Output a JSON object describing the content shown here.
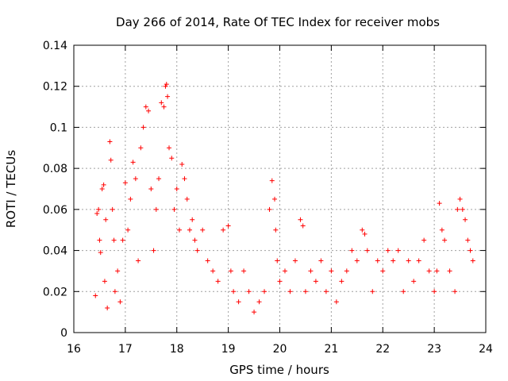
{
  "chart_data": {
    "type": "scatter",
    "title": "Day 266 of 2014, Rate Of TEC Index for receiver mobs",
    "xlabel": "GPS time / hours",
    "ylabel": "ROTI / TECUs",
    "xlim": [
      16,
      24
    ],
    "ylim": [
      0,
      0.14
    ],
    "x_ticks": [
      "16",
      "17",
      "18",
      "19",
      "20",
      "21",
      "22",
      "23",
      "24"
    ],
    "y_ticks": [
      "0",
      "0.02",
      "0.04",
      "0.06",
      "0.08",
      "0.1",
      "0.12",
      "0.14"
    ],
    "grid": true,
    "marker": "+",
    "series": [
      {
        "name": "ROTI",
        "color": "#ff0000",
        "x": [
          16.42,
          16.45,
          16.48,
          16.5,
          16.52,
          16.55,
          16.58,
          16.6,
          16.62,
          16.65,
          16.7,
          16.72,
          16.75,
          16.78,
          16.8,
          16.85,
          16.9,
          16.95,
          17.0,
          17.05,
          17.1,
          17.15,
          17.2,
          17.25,
          17.3,
          17.35,
          17.4,
          17.45,
          17.5,
          17.55,
          17.6,
          17.65,
          17.7,
          17.75,
          17.78,
          17.8,
          17.82,
          17.85,
          17.9,
          17.95,
          18.0,
          18.05,
          18.1,
          18.15,
          18.2,
          18.25,
          18.3,
          18.35,
          18.4,
          18.5,
          18.6,
          18.7,
          18.8,
          18.9,
          19.0,
          19.05,
          19.1,
          19.2,
          19.3,
          19.4,
          19.5,
          19.6,
          19.7,
          19.8,
          19.85,
          19.9,
          19.92,
          19.95,
          20.0,
          20.1,
          20.2,
          20.3,
          20.4,
          20.45,
          20.5,
          20.6,
          20.7,
          20.8,
          20.9,
          21.0,
          21.1,
          21.2,
          21.3,
          21.4,
          21.5,
          21.6,
          21.65,
          21.7,
          21.8,
          21.9,
          22.0,
          22.1,
          22.2,
          22.3,
          22.4,
          22.5,
          22.6,
          22.7,
          22.8,
          22.9,
          23.0,
          23.05,
          23.1,
          23.15,
          23.2,
          23.3,
          23.4,
          23.45,
          23.5,
          23.55,
          23.6,
          23.65,
          23.7,
          23.75
        ],
        "y": [
          0.018,
          0.058,
          0.06,
          0.045,
          0.039,
          0.07,
          0.072,
          0.025,
          0.055,
          0.012,
          0.093,
          0.084,
          0.06,
          0.045,
          0.02,
          0.03,
          0.015,
          0.045,
          0.073,
          0.05,
          0.065,
          0.083,
          0.075,
          0.035,
          0.09,
          0.1,
          0.11,
          0.108,
          0.07,
          0.04,
          0.06,
          0.075,
          0.112,
          0.11,
          0.12,
          0.121,
          0.115,
          0.09,
          0.085,
          0.06,
          0.07,
          0.05,
          0.082,
          0.075,
          0.065,
          0.05,
          0.055,
          0.045,
          0.04,
          0.05,
          0.035,
          0.03,
          0.025,
          0.05,
          0.052,
          0.03,
          0.02,
          0.015,
          0.03,
          0.02,
          0.01,
          0.015,
          0.02,
          0.06,
          0.074,
          0.065,
          0.05,
          0.035,
          0.025,
          0.03,
          0.02,
          0.035,
          0.055,
          0.052,
          0.02,
          0.03,
          0.025,
          0.035,
          0.02,
          0.03,
          0.015,
          0.025,
          0.03,
          0.04,
          0.035,
          0.05,
          0.048,
          0.04,
          0.02,
          0.035,
          0.03,
          0.04,
          0.035,
          0.04,
          0.02,
          0.035,
          0.025,
          0.035,
          0.045,
          0.03,
          0.02,
          0.03,
          0.063,
          0.05,
          0.045,
          0.03,
          0.02,
          0.06,
          0.065,
          0.06,
          0.055,
          0.045,
          0.04,
          0.035
        ]
      }
    ]
  }
}
